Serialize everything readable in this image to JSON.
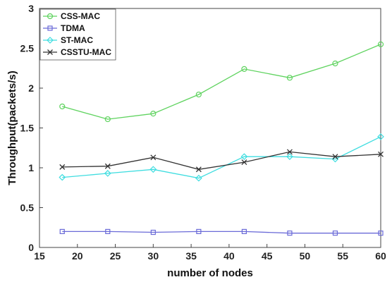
{
  "chart_data": {
    "type": "line",
    "xlabel": "number of nodes",
    "ylabel": "Throughput(packets/s)",
    "xlim": [
      15,
      60
    ],
    "ylim": [
      0,
      3
    ],
    "xticks": [
      15,
      20,
      25,
      30,
      35,
      40,
      45,
      50,
      55,
      60
    ],
    "xtick_labels": [
      "15",
      "20",
      "25",
      "30",
      "35",
      "40",
      "45",
      "50",
      "55",
      "60"
    ],
    "yticks": [
      0,
      0.5,
      1,
      1.5,
      2,
      2.5,
      3
    ],
    "ytick_labels": [
      "0",
      "0.5",
      "1",
      "1.5",
      "2",
      "2.5",
      "3"
    ],
    "grid": false,
    "legend_position": "top-left",
    "x": [
      18,
      24,
      30,
      36,
      42,
      48,
      54,
      60
    ],
    "series": [
      {
        "name": "CSS-MAC",
        "color": "#5fd35f",
        "marker": "circle",
        "values": [
          1.77,
          1.61,
          1.68,
          1.92,
          2.24,
          2.13,
          2.31,
          2.55
        ]
      },
      {
        "name": "TDMA",
        "color": "#6b6bd8",
        "marker": "square",
        "values": [
          0.2,
          0.2,
          0.19,
          0.2,
          0.2,
          0.18,
          0.18,
          0.18
        ]
      },
      {
        "name": "ST-MAC",
        "color": "#3fdde0",
        "marker": "diamond",
        "values": [
          0.88,
          0.93,
          0.98,
          0.87,
          1.14,
          1.14,
          1.11,
          1.39
        ]
      },
      {
        "name": "CSSTU-MAC",
        "color": "#333333",
        "marker": "x",
        "values": [
          1.01,
          1.02,
          1.13,
          0.98,
          1.07,
          1.2,
          1.14,
          1.17
        ]
      }
    ]
  }
}
